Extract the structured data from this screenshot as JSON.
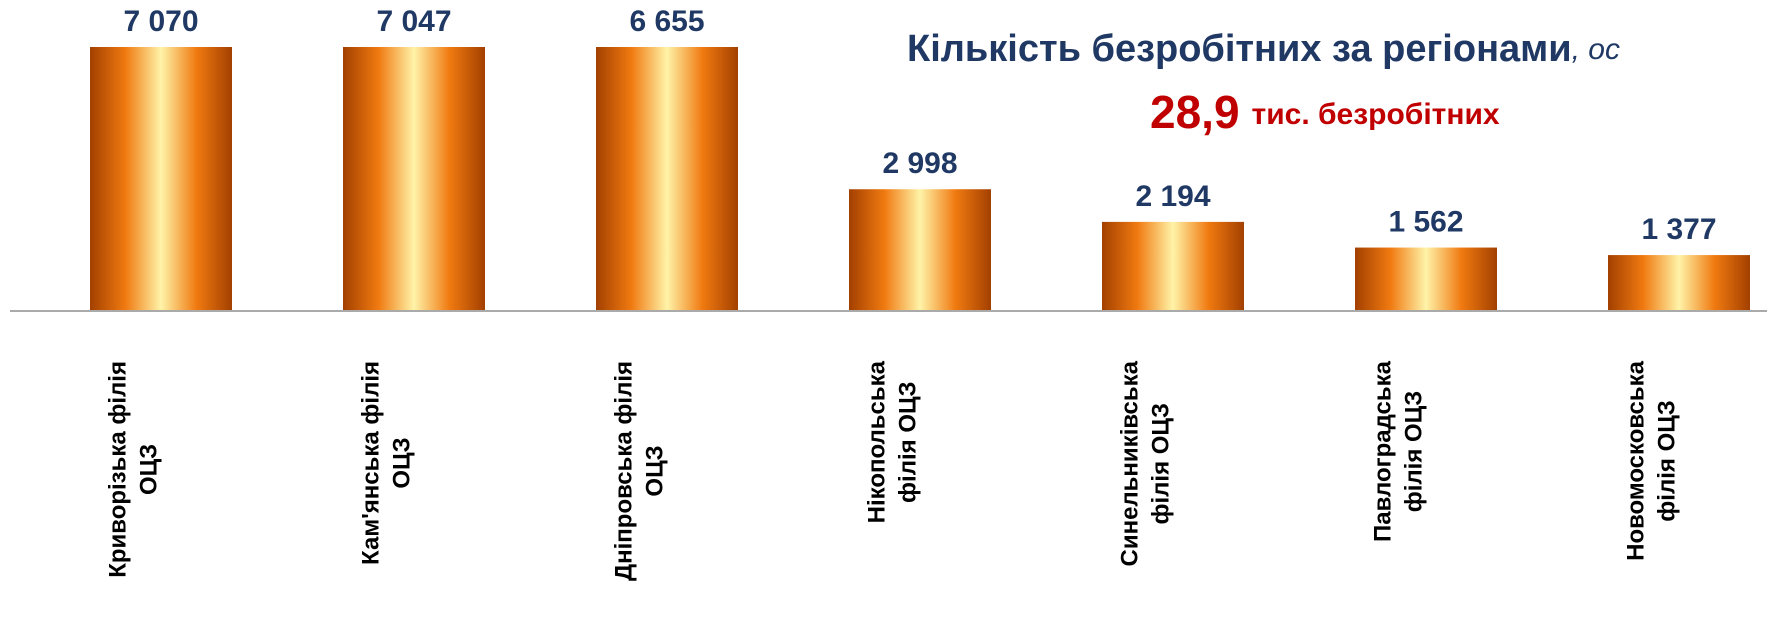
{
  "chart_data": {
    "type": "bar",
    "title": "Кількість безробітних за регіонами",
    "title_suffix": ", ос",
    "subtitle_number": "28,9",
    "subtitle_text": "тис. безробітних",
    "categories": [
      [
        "Криворізька філія",
        "ОЦЗ"
      ],
      [
        "Кам'янська філія",
        "ОЦЗ"
      ],
      [
        "Дніпровська філія",
        "ОЦЗ"
      ],
      [
        "Нікопольська",
        "філія ОЦЗ"
      ],
      [
        "Синельниківська",
        "філія ОЦЗ"
      ],
      [
        "Павлоградська",
        "філія ОЦЗ"
      ],
      [
        "Новомосковська",
        "філія ОЦЗ"
      ]
    ],
    "values": [
      7070,
      7047,
      6655,
      2998,
      2194,
      1562,
      1377
    ],
    "value_labels": [
      "7 070",
      "7 047",
      "6 655",
      "2 998",
      "2 194",
      "1 562",
      "1 377"
    ],
    "color": "#e8821a",
    "ylim": [
      0,
      6500
    ]
  }
}
